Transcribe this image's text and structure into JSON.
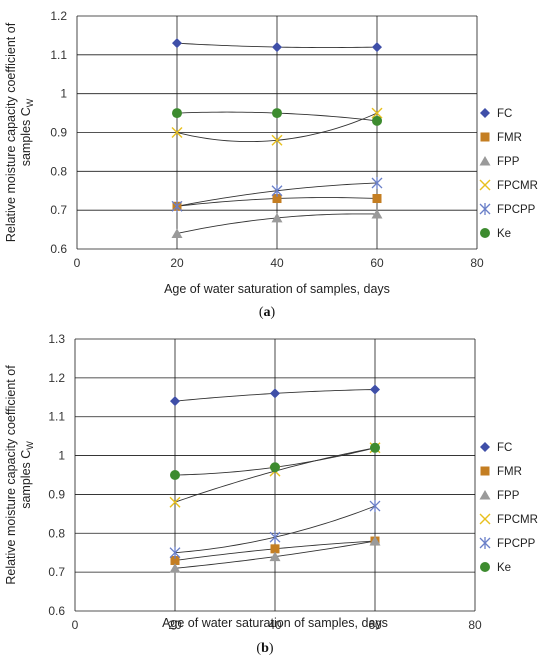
{
  "colors": {
    "FC": "#3f4fa8",
    "FMR": "#c47e22",
    "FPP": "#9a9a9a",
    "FPCMR": "#e8c01e",
    "FPCPP": "#6a7fc8",
    "Ke": "#3d8b2f",
    "grid": "#1a1a1a",
    "trend": "#333333"
  },
  "chart_data": [
    {
      "panel_label": "a",
      "type": "scatter",
      "xlabel": "Age of water saturation of samples, days",
      "ylabel": "Relative moisture capacity coefficient of samples C",
      "ylabel_sub": "W",
      "xlim": [
        0,
        80
      ],
      "ylim": [
        0.6,
        1.2
      ],
      "xticks": [
        0,
        20,
        40,
        60,
        80
      ],
      "yticks": [
        0.6,
        0.7,
        0.8,
        0.9,
        1.0,
        1.1,
        1.2
      ],
      "ytick_labels": [
        "0.6",
        "0.7",
        "0.8",
        "0.9",
        "1",
        "1.1",
        "1.2"
      ],
      "grid": "both",
      "legend_position": "right",
      "x": [
        20,
        40,
        60
      ],
      "series": [
        {
          "name": "FC",
          "marker": "diamond",
          "values": [
            1.13,
            1.12,
            1.12
          ],
          "trend": "poly"
        },
        {
          "name": "FMR",
          "marker": "square",
          "values": [
            0.71,
            0.73,
            0.73
          ],
          "trend": "poly"
        },
        {
          "name": "FPP",
          "marker": "triangle",
          "values": [
            0.64,
            0.68,
            0.69
          ],
          "trend": "poly"
        },
        {
          "name": "FPCMR",
          "marker": "x",
          "values": [
            0.9,
            0.88,
            0.95
          ],
          "trend": "poly"
        },
        {
          "name": "FPCPP",
          "marker": "star",
          "values": [
            0.71,
            0.75,
            0.77
          ],
          "trend": "poly"
        },
        {
          "name": "Ke",
          "marker": "circle",
          "values": [
            0.95,
            0.95,
            0.93
          ],
          "trend": "poly"
        }
      ]
    },
    {
      "panel_label": "b",
      "type": "scatter",
      "xlabel": "Age of water saturation of samples, days",
      "ylabel": "Relative moisture capacity coefficient of samples C",
      "ylabel_sub": "W",
      "xlim": [
        0,
        80
      ],
      "ylim": [
        0.6,
        1.3
      ],
      "xticks": [
        0,
        20,
        40,
        60,
        80
      ],
      "yticks": [
        0.6,
        0.7,
        0.8,
        0.9,
        1.0,
        1.1,
        1.2,
        1.3
      ],
      "ytick_labels": [
        "0.6",
        "0.7",
        "0.8",
        "0.9",
        "1",
        "1.1",
        "1.2",
        "1.3"
      ],
      "grid": "both",
      "legend_position": "right",
      "x": [
        20,
        40,
        60
      ],
      "series": [
        {
          "name": "FC",
          "marker": "diamond",
          "values": [
            1.14,
            1.16,
            1.17
          ],
          "trend": "poly"
        },
        {
          "name": "FMR",
          "marker": "square",
          "values": [
            0.73,
            0.76,
            0.78
          ],
          "trend": "poly"
        },
        {
          "name": "FPP",
          "marker": "triangle",
          "values": [
            0.71,
            0.74,
            0.78
          ],
          "trend": "poly"
        },
        {
          "name": "FPCMR",
          "marker": "x",
          "values": [
            0.88,
            0.96,
            1.02
          ],
          "trend": "poly"
        },
        {
          "name": "FPCPP",
          "marker": "star",
          "values": [
            0.75,
            0.79,
            0.87
          ],
          "trend": "poly"
        },
        {
          "name": "Ke",
          "marker": "circle",
          "values": [
            0.95,
            0.97,
            1.02
          ],
          "trend": "poly"
        }
      ]
    }
  ]
}
